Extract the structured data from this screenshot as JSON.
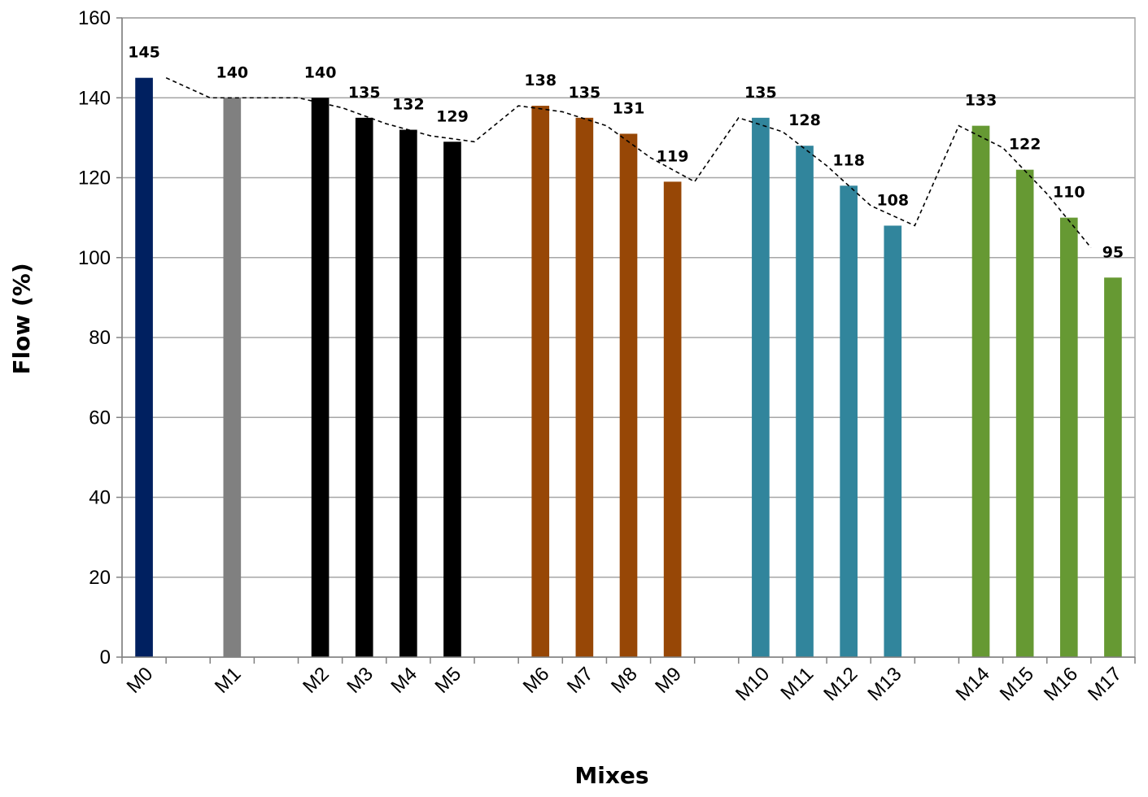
{
  "chart_data": {
    "type": "bar",
    "title": "",
    "xlabel": "Mixes",
    "ylabel": "Flow (%)",
    "ylim": [
      0,
      160
    ],
    "yticks": [
      0,
      20,
      40,
      60,
      80,
      100,
      120,
      140,
      160
    ],
    "grid": "horizontal major gridlines on",
    "legend": "none",
    "categories": [
      "M0",
      "",
      "M1",
      "",
      "M2",
      "M3",
      "M4",
      "M5",
      "",
      "M6",
      "M7",
      "M8",
      "M9",
      "",
      "M10",
      "M11",
      "M12",
      "M13",
      "",
      "M14",
      "M15",
      "M16",
      "M17"
    ],
    "values": [
      145,
      null,
      140,
      null,
      140,
      135,
      132,
      129,
      null,
      138,
      135,
      131,
      119,
      null,
      135,
      128,
      118,
      108,
      null,
      133,
      122,
      110,
      95
    ],
    "data_labels": [
      "145",
      "",
      "140",
      "",
      "140",
      "135",
      "132",
      "129",
      "",
      "138",
      "135",
      "131",
      "119",
      "",
      "135",
      "128",
      "118",
      "108",
      "",
      "133",
      "122",
      "110",
      "95"
    ],
    "bar_colors": [
      "#002060",
      null,
      "#808080",
      null,
      "#000000",
      "#000000",
      "#000000",
      "#000000",
      null,
      "#974706",
      "#974706",
      "#974706",
      "#974706",
      null,
      "#31859C",
      "#31859C",
      "#31859C",
      "#31859C",
      null,
      "#669933",
      "#669933",
      "#669933",
      "#669933"
    ],
    "trendline": {
      "style": "dashed",
      "color": "#000000",
      "x": [
        1,
        2,
        3,
        4,
        5,
        6,
        7,
        8,
        9,
        10,
        11,
        12,
        13,
        14,
        15,
        16,
        17,
        18,
        19,
        20,
        21,
        22
      ],
      "y": [
        145,
        140,
        140,
        140,
        137.5,
        133.5,
        130.5,
        129,
        138,
        136.5,
        133,
        125,
        119,
        135,
        131.5,
        123,
        113,
        108,
        133,
        127.5,
        116,
        102.5
      ]
    }
  }
}
